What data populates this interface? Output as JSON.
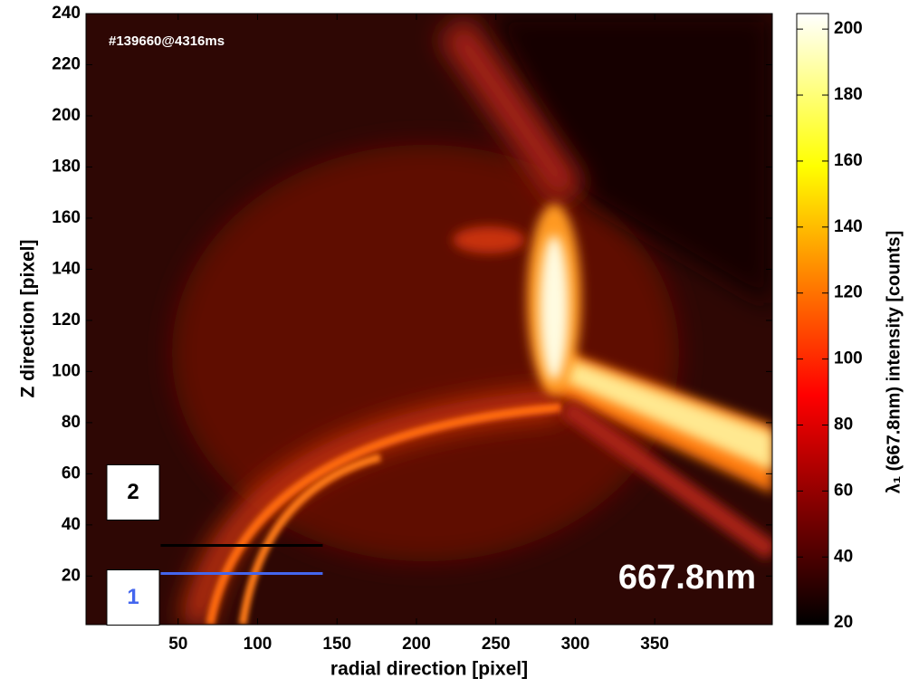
{
  "chart_data": {
    "type": "heatmap",
    "annotation": "#139660@4316ms",
    "wavelength_label": "667.8nm",
    "xlabel": "radial direction [pixel]",
    "ylabel": "Z direction [pixel]",
    "colorbar_label": "λ₁ (667.8nm) intensity [counts]",
    "colormap": "hot",
    "xlim": [
      -8,
      424
    ],
    "xticks": [
      50,
      100,
      150,
      200,
      250,
      300,
      350
    ],
    "ylim": [
      1,
      240
    ],
    "yticks": [
      20,
      40,
      60,
      80,
      100,
      120,
      140,
      160,
      180,
      200,
      220,
      240
    ],
    "clim": [
      19.5,
      204.7
    ],
    "cticks": [
      20,
      40,
      60,
      80,
      100,
      120,
      140,
      160,
      180,
      200
    ],
    "markers": [
      {
        "label": "2",
        "x": [
          39,
          141
        ],
        "y": 32,
        "color": "#000000"
      },
      {
        "label": "1",
        "x": [
          39,
          141
        ],
        "y": 21,
        "color": "#4466ee"
      }
    ]
  }
}
